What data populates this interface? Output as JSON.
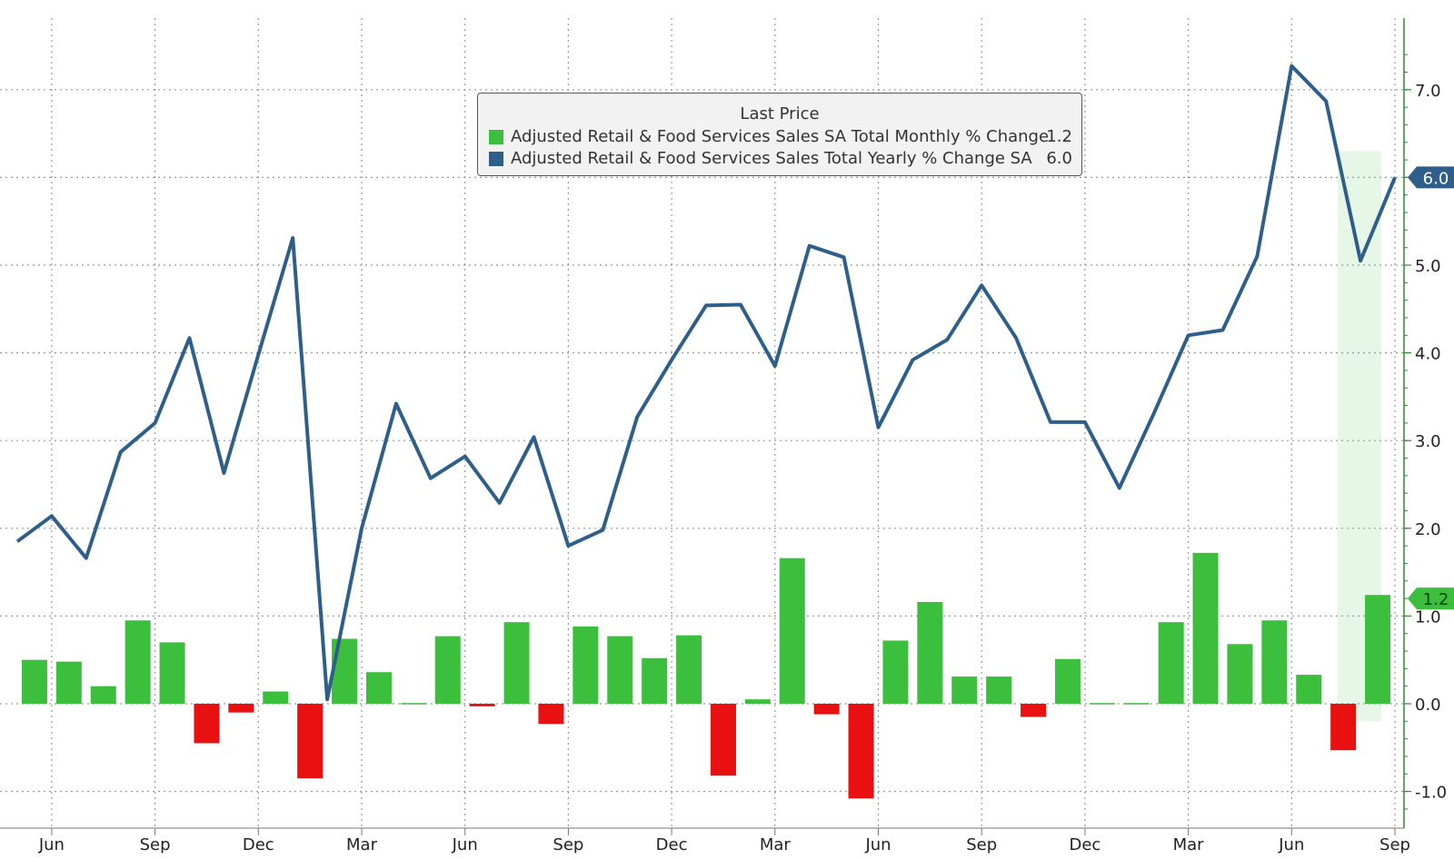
{
  "chart_data": {
    "type": "bar",
    "title": "",
    "xlabel": "",
    "ylabel": "",
    "ylim": [
      -1.4,
      7.8
    ],
    "y_ticks": [
      "7.0",
      "6.0",
      "5.0",
      "4.0",
      "3.0",
      "2.0",
      "1.0",
      "0.0",
      "-1.0"
    ],
    "y_tick_values": [
      7,
      6,
      5,
      4,
      3,
      2,
      1,
      0,
      -1
    ],
    "y_axis_side": "right",
    "grid": true,
    "legend": {
      "title": "Last Price",
      "placement": "top-center",
      "entries": [
        {
          "name": "Adjusted Retail & Food Services Sales SA Total Monthly % Change",
          "value": "1.2",
          "color": "#3cbf3c"
        },
        {
          "name": "Adjusted Retail & Food Services Sales Total Yearly % Change SA",
          "value": "6.0",
          "color": "#2e5f8a"
        }
      ]
    },
    "x_tick_labels": [
      "Jun",
      "Sep",
      "Dec",
      "Mar",
      "Jun",
      "Sep",
      "Dec",
      "Mar",
      "Jun",
      "Sep",
      "Dec",
      "Mar",
      "Jun",
      "Sep"
    ],
    "x_tick_index": [
      1,
      4,
      7,
      10,
      13,
      16,
      19,
      22,
      25,
      28,
      31,
      34,
      37,
      40
    ],
    "last_value_tags": [
      {
        "label": "6.0",
        "value": 6.0,
        "color": "#2e5f8a"
      },
      {
        "label": "1.2",
        "value": 1.2,
        "color": "#3cbf3c"
      }
    ],
    "series": [
      {
        "name": "Adjusted Retail & Food Services Sales SA Total Monthly % Change",
        "kind": "bar",
        "positive_color": "#3cbf3c",
        "negative_color": "#e81010",
        "values": [
          0.5,
          0.48,
          0.2,
          0.95,
          0.7,
          -0.45,
          -0.1,
          0.14,
          -0.85,
          0.74,
          0.36,
          0.0,
          0.77,
          -0.03,
          0.93,
          -0.23,
          0.88,
          0.77,
          0.52,
          0.78,
          -0.82,
          0.05,
          1.66,
          -0.12,
          -1.08,
          0.72,
          1.16,
          0.31,
          0.31,
          -0.15,
          0.51,
          0.0,
          0.0,
          0.93,
          1.72,
          0.68,
          0.95,
          0.33,
          -0.53,
          1.24
        ]
      },
      {
        "name": "Adjusted Retail & Food Services Sales Total Yearly % Change SA",
        "kind": "line",
        "color": "#2e5f8a",
        "values": [
          1.85,
          2.14,
          1.66,
          2.87,
          3.2,
          4.17,
          2.63,
          3.98,
          5.31,
          0.05,
          2.0,
          3.42,
          2.57,
          2.82,
          2.29,
          3.04,
          1.8,
          1.98,
          3.27,
          3.92,
          4.54,
          4.55,
          3.85,
          5.22,
          5.09,
          3.15,
          3.92,
          4.15,
          4.77,
          4.17,
          3.21,
          3.21,
          2.46,
          3.31,
          4.2,
          4.26,
          5.1,
          7.27,
          6.87,
          5.05,
          6.0
        ]
      }
    ]
  }
}
